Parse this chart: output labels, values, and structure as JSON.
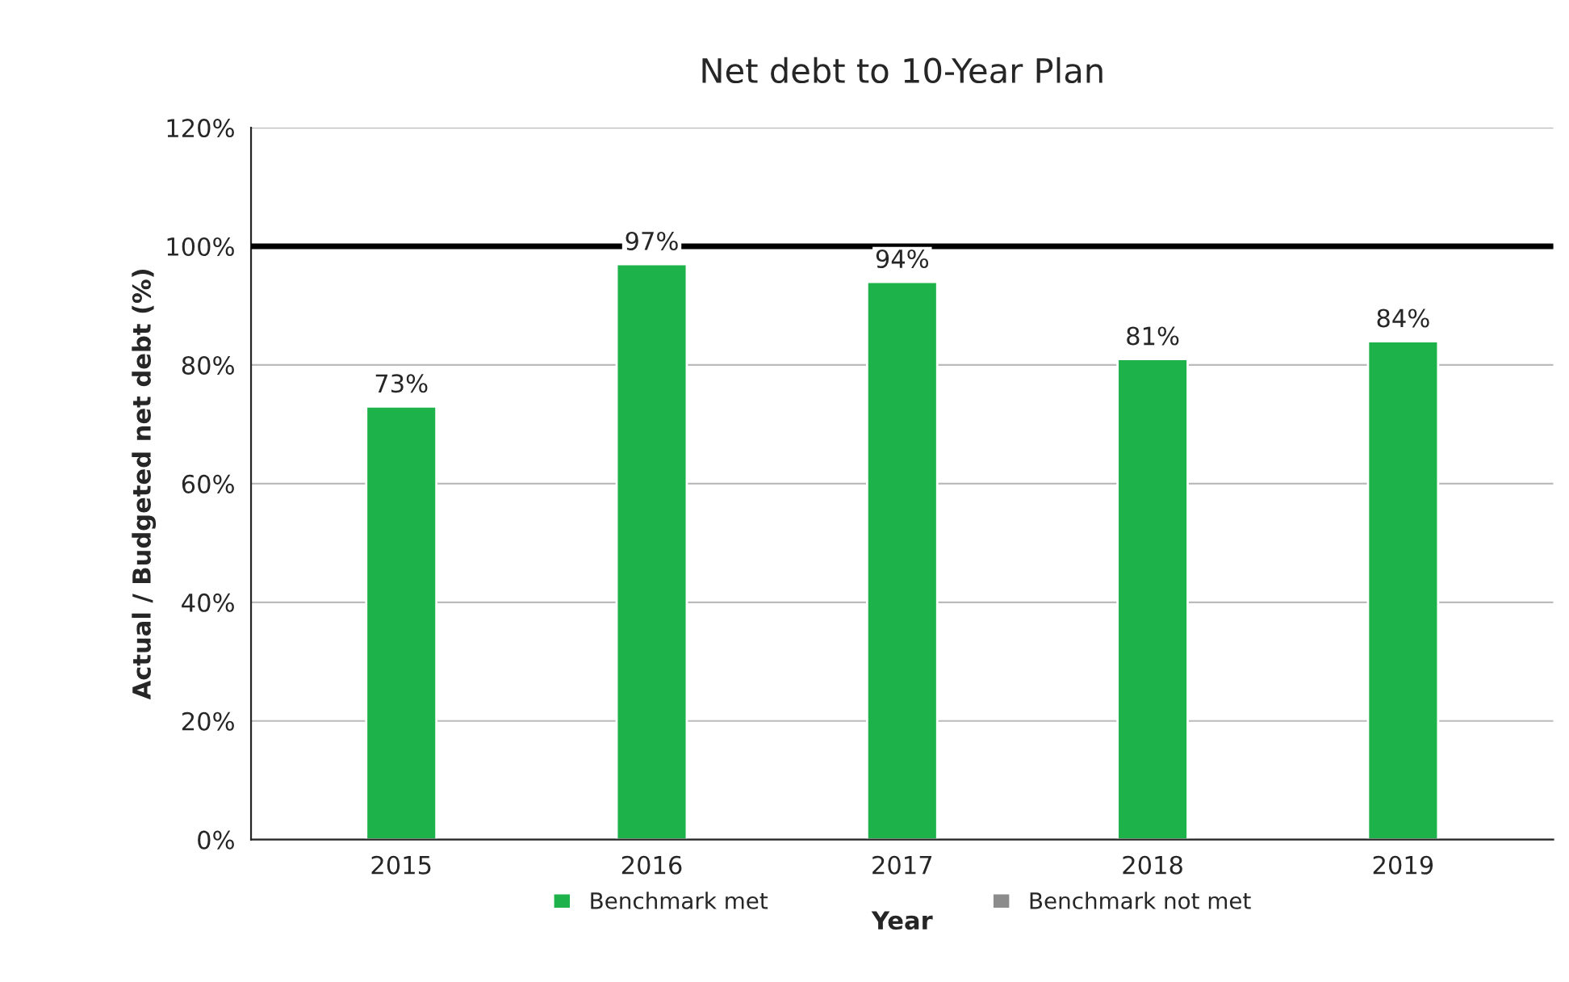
{
  "chart_data": {
    "type": "bar",
    "title": "Net debt to 10-Year Plan",
    "xlabel": "Year",
    "ylabel": "Actual / Budgeted net debt (%)",
    "categories": [
      "2015",
      "2016",
      "2017",
      "2018",
      "2019"
    ],
    "series": [
      {
        "name": "Benchmark met",
        "color": "#1db34a",
        "values": [
          73,
          97,
          94,
          81,
          84
        ],
        "value_labels": [
          "73%",
          "97%",
          "94%",
          "81%",
          "84%"
        ]
      },
      {
        "name": "Benchmark not met",
        "color": "#8c8c8c",
        "values": [
          null,
          null,
          null,
          null,
          null
        ]
      }
    ],
    "ylim": [
      0,
      120
    ],
    "yticks": [
      {
        "value": 0,
        "label": "0%"
      },
      {
        "value": 20,
        "label": "20%"
      },
      {
        "value": 40,
        "label": "40%"
      },
      {
        "value": 60,
        "label": "60%"
      },
      {
        "value": 80,
        "label": "80%"
      },
      {
        "value": 100,
        "label": "100%"
      },
      {
        "value": 120,
        "label": "120%"
      }
    ],
    "ref_lines": [
      {
        "axis": "y",
        "value": 100,
        "color": "#000000"
      }
    ],
    "grid": "y",
    "legend": "bottom"
  }
}
